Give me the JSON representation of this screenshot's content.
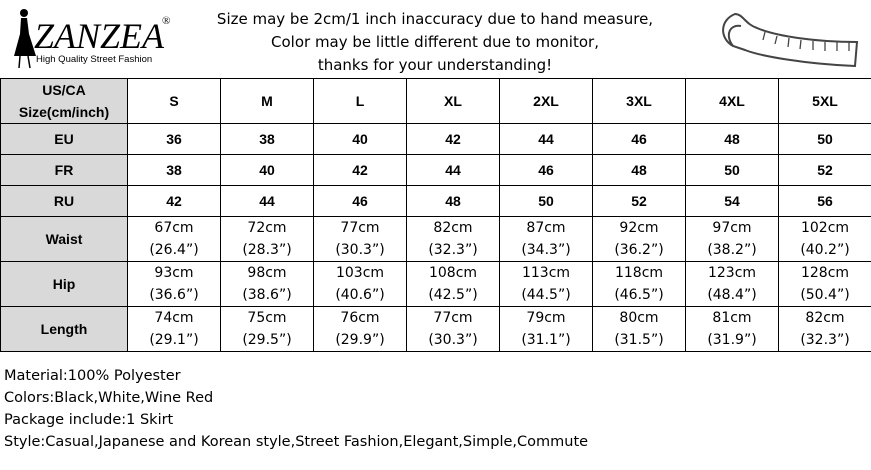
{
  "header": {
    "logo": "ZANZEA",
    "logo_mark": "®",
    "tagline": "High Quality Street Fashion",
    "notice": [
      "Size may be 2cm/1 inch inaccuracy due to hand measure,",
      "Color may be little different due to monitor,",
      "thanks for your understanding!"
    ]
  },
  "table": {
    "columns": [
      [
        "US/CA",
        "Size(cm/inch)"
      ],
      "S",
      "M",
      "L",
      "XL",
      "2XL",
      "3XL",
      "4XL",
      "5XL"
    ],
    "rows": [
      {
        "label": "EU",
        "cells": [
          "36",
          "38",
          "40",
          "42",
          "44",
          "46",
          "48",
          "50"
        ]
      },
      {
        "label": "FR",
        "cells": [
          "38",
          "40",
          "42",
          "44",
          "46",
          "48",
          "50",
          "52"
        ]
      },
      {
        "label": "RU",
        "cells": [
          "42",
          "44",
          "46",
          "48",
          "50",
          "52",
          "54",
          "56"
        ]
      },
      {
        "label": "Waist",
        "cells": [
          [
            "67cm",
            "(26.4”)"
          ],
          [
            "72cm",
            "(28.3”)"
          ],
          [
            "77cm",
            "(30.3”)"
          ],
          [
            "82cm",
            "(32.3”)"
          ],
          [
            "87cm",
            "(34.3”)"
          ],
          [
            "92cm",
            "(36.2”)"
          ],
          [
            "97cm",
            "(38.2”)"
          ],
          [
            "102cm",
            "(40.2”)"
          ]
        ]
      },
      {
        "label": "Hip",
        "cells": [
          [
            "93cm",
            "(36.6”)"
          ],
          [
            "98cm",
            "(38.6”)"
          ],
          [
            "103cm",
            "(40.6”)"
          ],
          [
            "108cm",
            "(42.5”)"
          ],
          [
            "113cm",
            "(44.5”)"
          ],
          [
            "118cm",
            "(46.5”)"
          ],
          [
            "123cm",
            "(48.4”)"
          ],
          [
            "128cm",
            "(50.4”)"
          ]
        ]
      },
      {
        "label": "Length",
        "cells": [
          [
            "74cm",
            "(29.1”)"
          ],
          [
            "75cm",
            "(29.5”)"
          ],
          [
            "76cm",
            "(29.9”)"
          ],
          [
            "77cm",
            "(30.3”)"
          ],
          [
            "79cm",
            "(31.1”)"
          ],
          [
            "80cm",
            "(31.5”)"
          ],
          [
            "81cm",
            "(31.9”)"
          ],
          [
            "82cm",
            "(32.3”)"
          ]
        ]
      }
    ]
  },
  "details": [
    "Material:100% Polyester",
    "Colors:Black,White,Wine Red",
    "Package include:1 Skirt",
    "Style:Casual,Japanese and Korean style,Street Fashion,Elegant,Simple,Commute"
  ]
}
